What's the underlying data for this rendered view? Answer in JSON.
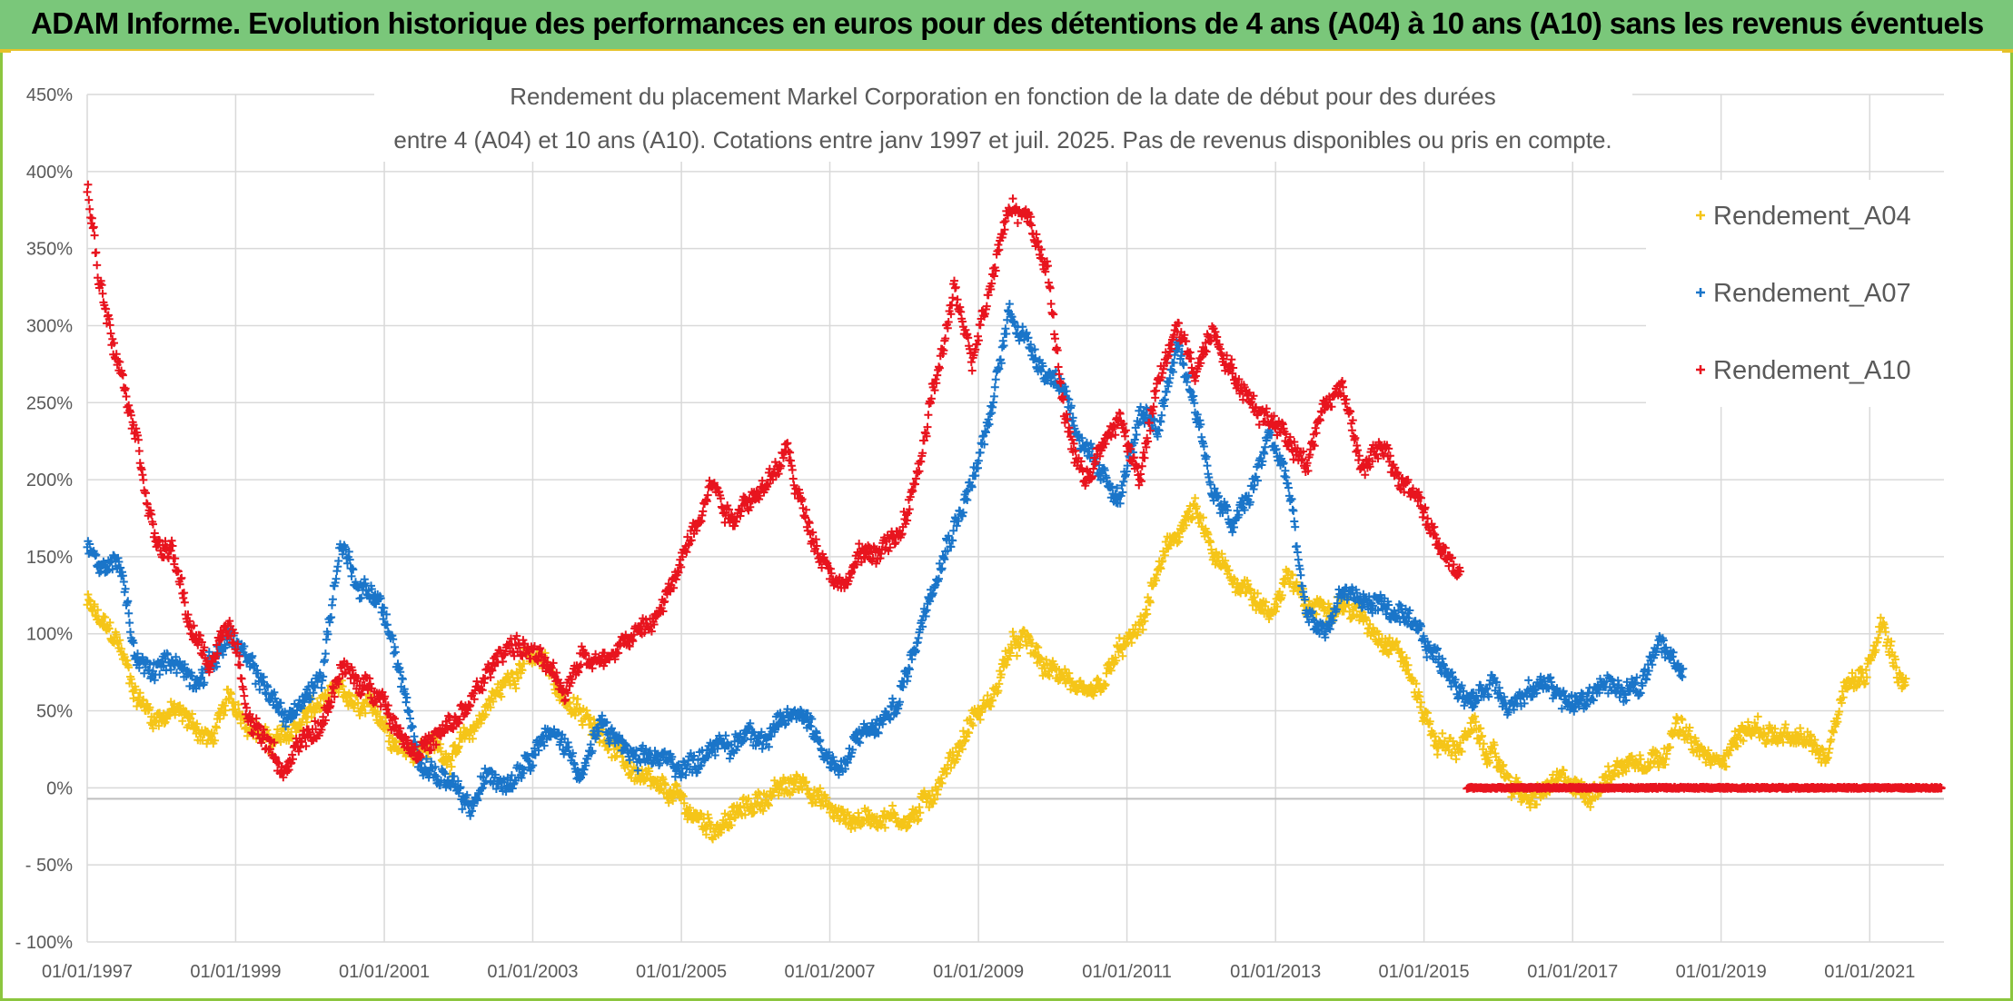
{
  "header": {
    "title": "ADAM Informe. Evolution historique des performances en euros pour des détentions de 4 ans (A04) à 10 ans (A10) sans les revenus éventuels"
  },
  "chart_data": {
    "type": "scatter",
    "title_line1": "Rendement du placement Markel Corporation en fonction de la date de début pour des durées",
    "title_line2": "entre 4 (A04) et 10 ans (A10). Cotations entre janv 1997 et juil. 2025. Pas de revenus disponibles ou pris en compte.",
    "xlabel": "",
    "ylabel": "",
    "ylim": [
      -100,
      450
    ],
    "y_ticks": [
      -100,
      -50,
      0,
      50,
      100,
      150,
      200,
      250,
      300,
      350,
      400,
      450
    ],
    "y_tick_labels": [
      "- 100%",
      "- 50%",
      "0%",
      "50%",
      "100%",
      "150%",
      "200%",
      "250%",
      "300%",
      "350%",
      "400%",
      "450%"
    ],
    "x_tick_labels": [
      "01/01/1997",
      "01/01/1999",
      "01/01/2001",
      "01/01/2003",
      "01/01/2005",
      "01/01/2007",
      "01/01/2009",
      "01/01/2011",
      "01/01/2013",
      "01/01/2015",
      "01/01/2017",
      "01/01/2019",
      "01/01/2021"
    ],
    "x_range": [
      "1997-01-01",
      "2022-01-01"
    ],
    "grid": true,
    "legend_position": "top-right",
    "series": [
      {
        "name": "Rendement_A04",
        "color": "#f5c518",
        "end": "2021-07",
        "points": [
          [
            "1997-01",
            120
          ],
          [
            "1997-03",
            108
          ],
          [
            "1997-06",
            95
          ],
          [
            "1997-09",
            60
          ],
          [
            "1997-12",
            45
          ],
          [
            "1998-03",
            50
          ],
          [
            "1998-06",
            42
          ],
          [
            "1998-09",
            30
          ],
          [
            "1998-12",
            58
          ],
          [
            "1999-03",
            45
          ],
          [
            "1999-06",
            30
          ],
          [
            "1999-09",
            32
          ],
          [
            "1999-12",
            45
          ],
          [
            "2000-03",
            55
          ],
          [
            "2000-06",
            62
          ],
          [
            "2000-09",
            50
          ],
          [
            "2000-12",
            50
          ],
          [
            "2001-03",
            30
          ],
          [
            "2001-06",
            25
          ],
          [
            "2001-09",
            28
          ],
          [
            "2001-12",
            20
          ],
          [
            "2002-03",
            35
          ],
          [
            "2002-06",
            55
          ],
          [
            "2002-09",
            70
          ],
          [
            "2002-12",
            85
          ],
          [
            "2003-03",
            80
          ],
          [
            "2003-06",
            60
          ],
          [
            "2003-09",
            45
          ],
          [
            "2003-12",
            40
          ],
          [
            "2004-03",
            20
          ],
          [
            "2004-06",
            8
          ],
          [
            "2004-09",
            -2
          ],
          [
            "2004-12",
            -5
          ],
          [
            "2005-03",
            -18
          ],
          [
            "2005-06",
            -25
          ],
          [
            "2005-09",
            -20
          ],
          [
            "2005-12",
            -12
          ],
          [
            "2006-03",
            -5
          ],
          [
            "2006-06",
            0
          ],
          [
            "2006-09",
            5
          ],
          [
            "2006-12",
            -10
          ],
          [
            "2007-03",
            -20
          ],
          [
            "2007-06",
            -20
          ],
          [
            "2007-09",
            -18
          ],
          [
            "2007-12",
            -20
          ],
          [
            "2008-03",
            -18
          ],
          [
            "2008-06",
            0
          ],
          [
            "2008-09",
            20
          ],
          [
            "2008-12",
            45
          ],
          [
            "2009-03",
            55
          ],
          [
            "2009-06",
            90
          ],
          [
            "2009-09",
            95
          ],
          [
            "2009-12",
            75
          ],
          [
            "2010-03",
            75
          ],
          [
            "2010-06",
            55
          ],
          [
            "2010-09",
            65
          ],
          [
            "2010-12",
            90
          ],
          [
            "2011-03",
            100
          ],
          [
            "2011-06",
            140
          ],
          [
            "2011-09",
            165
          ],
          [
            "2011-12",
            180
          ],
          [
            "2012-03",
            150
          ],
          [
            "2012-06",
            135
          ],
          [
            "2012-09",
            130
          ],
          [
            "2012-12",
            110
          ],
          [
            "2013-03",
            140
          ],
          [
            "2013-06",
            115
          ],
          [
            "2013-09",
            120
          ],
          [
            "2013-12",
            120
          ],
          [
            "2014-03",
            110
          ],
          [
            "2014-06",
            100
          ],
          [
            "2014-09",
            90
          ],
          [
            "2014-12",
            60
          ],
          [
            "2015-03",
            30
          ],
          [
            "2015-06",
            25
          ],
          [
            "2015-09",
            38
          ],
          [
            "2015-12",
            20
          ],
          [
            "2016-03",
            5
          ],
          [
            "2016-06",
            -10
          ],
          [
            "2016-09",
            0
          ],
          [
            "2016-12",
            5
          ],
          [
            "2017-03",
            -5
          ],
          [
            "2017-06",
            5
          ],
          [
            "2017-09",
            15
          ],
          [
            "2017-12",
            20
          ],
          [
            "2018-03",
            20
          ],
          [
            "2018-06",
            40
          ],
          [
            "2018-09",
            25
          ],
          [
            "2018-12",
            15
          ],
          [
            "2019-03",
            30
          ],
          [
            "2019-06",
            40
          ],
          [
            "2019-09",
            35
          ],
          [
            "2019-12",
            30
          ],
          [
            "2020-03",
            30
          ],
          [
            "2020-06",
            20
          ],
          [
            "2020-09",
            70
          ],
          [
            "2020-12",
            70
          ],
          [
            "2021-03",
            110
          ],
          [
            "2021-06",
            70
          ],
          [
            "2021-07",
            70
          ]
        ]
      },
      {
        "name": "Rendement_A07",
        "color": "#1a75c9",
        "end": "2018-07",
        "points": [
          [
            "1997-01",
            160
          ],
          [
            "1997-03",
            140
          ],
          [
            "1997-06",
            150
          ],
          [
            "1997-09",
            80
          ],
          [
            "1997-12",
            75
          ],
          [
            "1998-03",
            85
          ],
          [
            "1998-06",
            70
          ],
          [
            "1998-09",
            80
          ],
          [
            "1998-12",
            100
          ],
          [
            "1999-03",
            80
          ],
          [
            "1999-06",
            65
          ],
          [
            "1999-09",
            45
          ],
          [
            "1999-12",
            55
          ],
          [
            "2000-03",
            75
          ],
          [
            "2000-06",
            160
          ],
          [
            "2000-09",
            130
          ],
          [
            "2000-12",
            125
          ],
          [
            "2001-03",
            85
          ],
          [
            "2001-06",
            25
          ],
          [
            "2001-09",
            10
          ],
          [
            "2001-12",
            0
          ],
          [
            "2002-03",
            -15
          ],
          [
            "2002-06",
            10
          ],
          [
            "2002-09",
            5
          ],
          [
            "2002-12",
            20
          ],
          [
            "2003-03",
            35
          ],
          [
            "2003-06",
            30
          ],
          [
            "2003-09",
            10
          ],
          [
            "2003-12",
            40
          ],
          [
            "2004-03",
            30
          ],
          [
            "2004-06",
            15
          ],
          [
            "2004-09",
            20
          ],
          [
            "2004-12",
            15
          ],
          [
            "2005-03",
            15
          ],
          [
            "2005-06",
            30
          ],
          [
            "2005-09",
            25
          ],
          [
            "2005-12",
            40
          ],
          [
            "2006-03",
            30
          ],
          [
            "2006-06",
            45
          ],
          [
            "2006-09",
            50
          ],
          [
            "2006-12",
            25
          ],
          [
            "2007-03",
            10
          ],
          [
            "2007-06",
            35
          ],
          [
            "2007-09",
            40
          ],
          [
            "2007-12",
            55
          ],
          [
            "2008-03",
            95
          ],
          [
            "2008-06",
            140
          ],
          [
            "2008-09",
            170
          ],
          [
            "2008-12",
            200
          ],
          [
            "2009-03",
            240
          ],
          [
            "2009-06",
            310
          ],
          [
            "2009-09",
            290
          ],
          [
            "2009-12",
            270
          ],
          [
            "2010-03",
            260
          ],
          [
            "2010-06",
            220
          ],
          [
            "2010-09",
            200
          ],
          [
            "2010-12",
            190
          ],
          [
            "2011-03",
            240
          ],
          [
            "2011-06",
            230
          ],
          [
            "2011-09",
            290
          ],
          [
            "2011-12",
            250
          ],
          [
            "2012-03",
            190
          ],
          [
            "2012-06",
            170
          ],
          [
            "2012-09",
            190
          ],
          [
            "2012-12",
            230
          ],
          [
            "2013-03",
            200
          ],
          [
            "2013-06",
            110
          ],
          [
            "2013-09",
            100
          ],
          [
            "2013-12",
            130
          ],
          [
            "2014-03",
            120
          ],
          [
            "2014-06",
            120
          ],
          [
            "2014-09",
            110
          ],
          [
            "2014-12",
            100
          ],
          [
            "2015-03",
            85
          ],
          [
            "2015-06",
            70
          ],
          [
            "2015-09",
            55
          ],
          [
            "2015-12",
            70
          ],
          [
            "2016-03",
            55
          ],
          [
            "2016-06",
            60
          ],
          [
            "2016-09",
            70
          ],
          [
            "2016-12",
            55
          ],
          [
            "2017-03",
            55
          ],
          [
            "2017-06",
            70
          ],
          [
            "2017-09",
            60
          ],
          [
            "2017-12",
            65
          ],
          [
            "2018-03",
            100
          ],
          [
            "2018-06",
            75
          ],
          [
            "2018-07",
            80
          ]
        ]
      },
      {
        "name": "Rendement_A10",
        "color": "#e8141e",
        "end": "2015-07",
        "zero_after": "2015-07",
        "zero_until": "2022-01",
        "points": [
          [
            "1997-01",
            390
          ],
          [
            "1997-03",
            330
          ],
          [
            "1997-06",
            280
          ],
          [
            "1997-09",
            230
          ],
          [
            "1997-12",
            160
          ],
          [
            "1998-03",
            150
          ],
          [
            "1998-06",
            100
          ],
          [
            "1998-09",
            80
          ],
          [
            "1998-12",
            110
          ],
          [
            "1999-03",
            50
          ],
          [
            "1999-06",
            30
          ],
          [
            "1999-09",
            10
          ],
          [
            "1999-12",
            30
          ],
          [
            "2000-03",
            40
          ],
          [
            "2000-06",
            80
          ],
          [
            "2000-09",
            65
          ],
          [
            "2000-12",
            65
          ],
          [
            "2001-03",
            40
          ],
          [
            "2001-06",
            25
          ],
          [
            "2001-09",
            30
          ],
          [
            "2001-12",
            40
          ],
          [
            "2002-03",
            55
          ],
          [
            "2002-06",
            75
          ],
          [
            "2002-09",
            95
          ],
          [
            "2002-12",
            90
          ],
          [
            "2003-03",
            80
          ],
          [
            "2003-06",
            60
          ],
          [
            "2003-09",
            90
          ],
          [
            "2003-12",
            80
          ],
          [
            "2004-03",
            95
          ],
          [
            "2004-06",
            100
          ],
          [
            "2004-09",
            110
          ],
          [
            "2004-12",
            135
          ],
          [
            "2005-03",
            170
          ],
          [
            "2005-06",
            200
          ],
          [
            "2005-09",
            175
          ],
          [
            "2005-12",
            190
          ],
          [
            "2006-03",
            195
          ],
          [
            "2006-06",
            220
          ],
          [
            "2006-09",
            175
          ],
          [
            "2006-12",
            150
          ],
          [
            "2007-03",
            130
          ],
          [
            "2007-06",
            150
          ],
          [
            "2007-09",
            155
          ],
          [
            "2007-12",
            160
          ],
          [
            "2008-03",
            200
          ],
          [
            "2008-06",
            260
          ],
          [
            "2008-09",
            320
          ],
          [
            "2008-12",
            280
          ],
          [
            "2009-03",
            330
          ],
          [
            "2009-06",
            380
          ],
          [
            "2009-09",
            370
          ],
          [
            "2009-12",
            340
          ],
          [
            "2010-03",
            240
          ],
          [
            "2010-06",
            200
          ],
          [
            "2010-09",
            220
          ],
          [
            "2010-12",
            240
          ],
          [
            "2011-03",
            200
          ],
          [
            "2011-06",
            260
          ],
          [
            "2011-09",
            300
          ],
          [
            "2011-12",
            270
          ],
          [
            "2012-03",
            300
          ],
          [
            "2012-06",
            270
          ],
          [
            "2012-09",
            250
          ],
          [
            "2012-12",
            240
          ],
          [
            "2013-03",
            230
          ],
          [
            "2013-06",
            210
          ],
          [
            "2013-09",
            250
          ],
          [
            "2013-12",
            260
          ],
          [
            "2014-03",
            210
          ],
          [
            "2014-06",
            220
          ],
          [
            "2014-09",
            200
          ],
          [
            "2014-12",
            190
          ],
          [
            "2015-03",
            160
          ],
          [
            "2015-06",
            140
          ],
          [
            "2015-07",
            140
          ]
        ]
      }
    ]
  }
}
